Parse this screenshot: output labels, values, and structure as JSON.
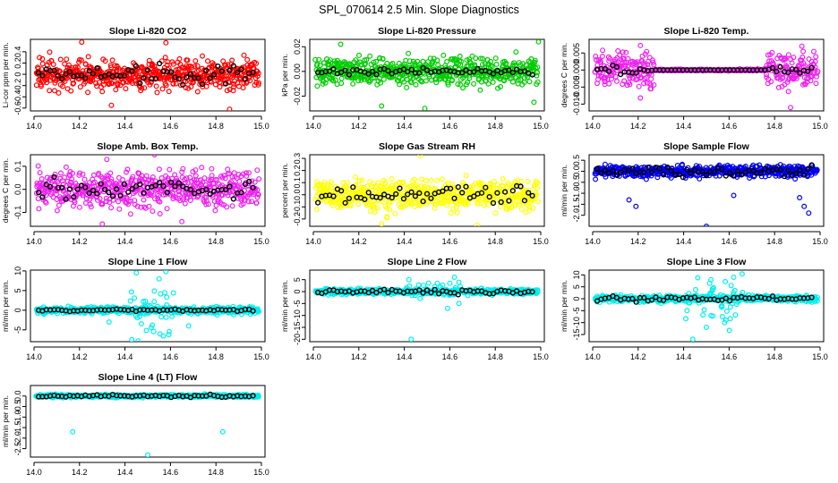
{
  "figure": {
    "title": "SPL_070614  2.5 Min. Slope Diagnostics"
  },
  "chart_data": [
    {
      "id": "co2",
      "type": "scatter",
      "title": "Slope Li-820 CO2",
      "ylabel": "Li-cor ppm per min.",
      "xlim": [
        14.0,
        15.0
      ],
      "ylim": [
        -0.65,
        0.62
      ],
      "xticks": [
        14.0,
        14.2,
        14.4,
        14.6,
        14.8,
        15.0
      ],
      "yticks": [
        -0.6,
        -0.4,
        -0.2,
        0.0,
        0.2,
        0.4
      ],
      "ytick_labels": [
        "-0.6",
        "-0.4",
        "-0.2",
        "0",
        "0.2",
        "0.4"
      ],
      "color": "#ff0000",
      "spread": 0.19,
      "outliers": [
        [
          14.21,
          0.57
        ],
        [
          14.34,
          -0.55
        ],
        [
          14.58,
          0.56
        ],
        [
          14.86,
          -0.62
        ]
      ],
      "black_amp": 0.12
    },
    {
      "id": "pressure",
      "type": "scatter",
      "title": "Slope Li-820 Pressure",
      "ylabel": "kPa per min.",
      "xlim": [
        14.0,
        15.0
      ],
      "ylim": [
        -0.032,
        0.026
      ],
      "xticks": [
        14.0,
        14.2,
        14.4,
        14.6,
        14.8,
        15.0
      ],
      "yticks": [
        -0.02,
        0.0,
        0.02
      ],
      "ytick_labels": [
        "-0.02",
        "0.00",
        "0.02"
      ],
      "color": "#00cc00",
      "spread": 0.008,
      "outliers": [
        [
          14.12,
          0.022
        ],
        [
          14.3,
          -0.028
        ],
        [
          14.49,
          -0.03
        ],
        [
          14.97,
          -0.025
        ],
        [
          14.99,
          0.024
        ]
      ],
      "black_amp": 0.002
    },
    {
      "id": "temp",
      "type": "scatter",
      "title": "Slope Li-820 Temp.",
      "ylabel": "degrees C per min.",
      "xlim": [
        14.0,
        15.0
      ],
      "ylim": [
        -0.012,
        0.009
      ],
      "xticks": [
        14.0,
        14.2,
        14.4,
        14.6,
        14.8,
        15.0
      ],
      "yticks": [
        -0.01,
        -0.005,
        0.0,
        0.005
      ],
      "ytick_labels": [
        "-0.010",
        "-0.005",
        "0.000",
        "0.005"
      ],
      "color": "#ee22ee",
      "spread": 0.0035,
      "outliers": [
        [
          14.21,
          0.0072
        ],
        [
          14.21,
          -0.0082
        ],
        [
          14.87,
          -0.011
        ],
        [
          14.92,
          0.007
        ]
      ],
      "black_amp": 0.001,
      "quiet": [
        [
          14.27,
          14.76
        ]
      ]
    },
    {
      "id": "box",
      "type": "scatter",
      "title": "Slope Amb. Box Temp.",
      "ylabel": "degrees C per min.",
      "xlim": [
        14.0,
        15.0
      ],
      "ylim": [
        -0.16,
        0.15
      ],
      "xticks": [
        14.0,
        14.2,
        14.4,
        14.6,
        14.8,
        15.0
      ],
      "yticks": [
        -0.1,
        0.0,
        0.1
      ],
      "ytick_labels": [
        "-0.1",
        "0.0",
        "0.1"
      ],
      "color": "#ee22ee",
      "spread": 0.055,
      "outliers": [
        [
          14.32,
          0.13
        ],
        [
          14.53,
          0.15
        ],
        [
          14.3,
          -0.15
        ],
        [
          14.65,
          -0.14
        ]
      ],
      "black_amp": 0.03
    },
    {
      "id": "rh",
      "type": "scatter",
      "title": "Slope Gas Stream RH",
      "ylabel": "percent per min.",
      "xlim": [
        14.0,
        15.0
      ],
      "ylim": [
        -0.26,
        0.33
      ],
      "xticks": [
        14.0,
        14.2,
        14.4,
        14.6,
        14.8,
        15.0
      ],
      "yticks": [
        -0.2,
        -0.1,
        0.0,
        0.1,
        0.2,
        0.3
      ],
      "ytick_labels": [
        "-0.2",
        "-0.1",
        "0.0",
        "0.1",
        "0.2",
        "0.3"
      ],
      "color": "#ffff00",
      "spread": 0.09,
      "outliers": [
        [
          14.47,
          0.32
        ],
        [
          14.3,
          -0.24
        ],
        [
          14.72,
          -0.25
        ]
      ],
      "black_amp": 0.06
    },
    {
      "id": "sample",
      "type": "scatter",
      "title": "Slope Sample Flow",
      "ylabel": "ml/min per min.",
      "xlim": [
        14.0,
        15.0
      ],
      "ylim": [
        -2.5,
        0.75
      ],
      "xticks": [
        14.0,
        14.2,
        14.4,
        14.6,
        14.8,
        15.0
      ],
      "yticks": [
        -2.0,
        -1.5,
        -1.0,
        -0.5,
        0.0,
        0.5
      ],
      "ytick_labels": [
        "-2.0",
        "-1.5",
        "-1.0",
        "-0.5",
        "0.0",
        "0.5"
      ],
      "color": "#0000ee",
      "spread": 0.18,
      "outliers": [
        [
          14.16,
          -1.3
        ],
        [
          14.19,
          -1.6
        ],
        [
          14.5,
          -2.5
        ],
        [
          14.62,
          -1.1
        ],
        [
          14.91,
          -1.2
        ],
        [
          14.93,
          -1.6
        ],
        [
          14.95,
          -1.9
        ]
      ],
      "black_amp": 0.15
    },
    {
      "id": "line1",
      "type": "scatter",
      "title": "Slope Line 1 Flow",
      "ylabel": "ml/min per min.",
      "xlim": [
        14.0,
        15.0
      ],
      "ylim": [
        -8.0,
        10.2
      ],
      "xticks": [
        14.0,
        14.2,
        14.4,
        14.6,
        14.8,
        15.0
      ],
      "yticks": [
        -5,
        0,
        5,
        10
      ],
      "ytick_labels": [
        "-5",
        "0",
        "5",
        "10"
      ],
      "color": "#00eeee",
      "spread": 0.6,
      "outliers": [
        [
          14.33,
          -3.0
        ],
        [
          14.43,
          -7.5
        ],
        [
          14.45,
          9.5
        ],
        [
          14.55,
          8.0
        ],
        [
          14.58,
          9.8
        ],
        [
          14.68,
          -4.0
        ]
      ],
      "black_amp": 0.2,
      "burst": [
        14.42,
        14.62,
        5
      ]
    },
    {
      "id": "line2",
      "type": "scatter",
      "title": "Slope Line 2 Flow",
      "ylabel": "ml/min per min.",
      "xlim": [
        14.0,
        15.0
      ],
      "ylim": [
        -21,
        9
      ],
      "xticks": [
        14.0,
        14.2,
        14.4,
        14.6,
        14.8,
        15.0
      ],
      "yticks": [
        -20,
        -15,
        -10,
        -5,
        0,
        5
      ],
      "ytick_labels": [
        "-20",
        "-15",
        "-10",
        "-5",
        "0",
        "5"
      ],
      "color": "#00eeee",
      "spread": 0.8,
      "outliers": [
        [
          14.43,
          -20
        ],
        [
          14.59,
          -7
        ],
        [
          14.42,
          5
        ],
        [
          14.62,
          6
        ],
        [
          14.64,
          -5
        ]
      ],
      "black_amp": 0.6,
      "burst": [
        14.42,
        14.65,
        3
      ]
    },
    {
      "id": "line3",
      "type": "scatter",
      "title": "Slope Line 3 Flow",
      "ylabel": "ml/min per min.",
      "xlim": [
        14.0,
        15.0
      ],
      "ylim": [
        -18,
        12
      ],
      "xticks": [
        14.0,
        14.2,
        14.4,
        14.6,
        14.8,
        15.0
      ],
      "yticks": [
        -15,
        -10,
        -5,
        0,
        5,
        10
      ],
      "ytick_labels": [
        "-15",
        "-10",
        "-5",
        "0",
        "5",
        "10"
      ],
      "color": "#00eeee",
      "spread": 0.9,
      "outliers": [
        [
          14.44,
          -17
        ],
        [
          14.52,
          8
        ],
        [
          14.58,
          -10
        ],
        [
          14.62,
          9
        ],
        [
          14.5,
          -12
        ]
      ],
      "black_amp": 0.8,
      "burst": [
        14.4,
        14.66,
        7
      ]
    },
    {
      "id": "line4",
      "type": "scatter",
      "title": "Slope Line 4 (LT) Flow",
      "ylabel": "ml/min per min.",
      "xlim": [
        14.0,
        15.0
      ],
      "ylim": [
        -2.9,
        0.5
      ],
      "xticks": [
        14.0,
        14.2,
        14.4,
        14.6,
        14.8,
        15.0
      ],
      "yticks": [
        -2.5,
        -2.0,
        -1.5,
        -1.0,
        -0.5,
        0.0
      ],
      "ytick_labels": [
        "-2.5",
        "-2.0",
        "-1.5",
        "-1.0",
        "-0.5",
        "0.0"
      ],
      "color": "#00eeee",
      "spread": 0.05,
      "outliers": [
        [
          14.17,
          -1.7
        ],
        [
          14.5,
          -2.8
        ],
        [
          14.83,
          -1.7
        ]
      ],
      "black_amp": 0.05
    }
  ]
}
